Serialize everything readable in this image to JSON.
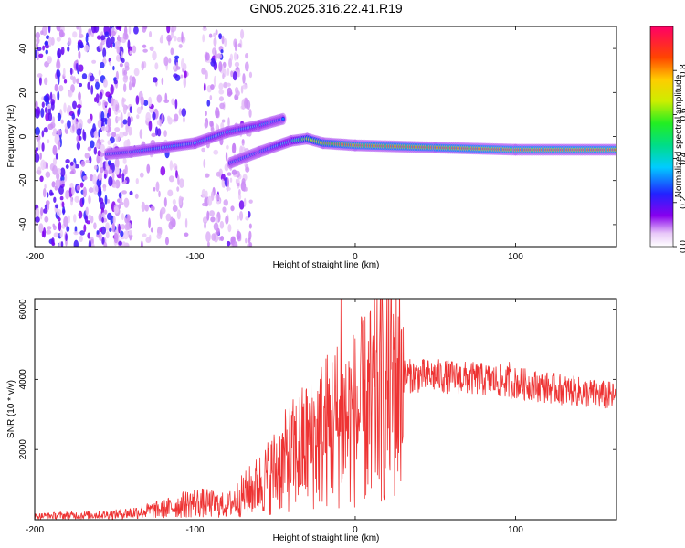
{
  "title": "GN05.2025.316.22.41.R19",
  "colors": {
    "snr_line": "#ee3333",
    "frame": "#000000"
  },
  "chart_data": [
    {
      "type": "heatmap",
      "name": "spectrogram",
      "xlabel": "Height of straight line (km)",
      "ylabel": "Frequency (Hz)",
      "xlim": [
        -200,
        163
      ],
      "ylim": [
        -50,
        50
      ],
      "x_ticks": [
        "-200",
        "-100",
        "0",
        "100"
      ],
      "y_ticks": [
        "40",
        "20",
        "0",
        "-20",
        "-40"
      ],
      "colorbar": {
        "label": "Normalized spectral amplitude",
        "range": [
          0,
          1
        ],
        "ticks": [
          "0.0",
          "0.2",
          "0.4",
          "0.6",
          "0.8"
        ]
      },
      "signal_track": [
        {
          "x": -155,
          "y": -8,
          "amp": 0.3
        },
        {
          "x": -140,
          "y": -7,
          "amp": 0.3
        },
        {
          "x": -120,
          "y": -5,
          "amp": 0.35
        },
        {
          "x": -100,
          "y": -3,
          "amp": 0.35
        },
        {
          "x": -80,
          "y": 2,
          "amp": 0.35
        },
        {
          "x": -60,
          "y": 5,
          "amp": 0.35
        },
        {
          "x": -45,
          "y": 8,
          "amp": 0.3
        },
        {
          "x": -78,
          "y": -12,
          "amp": 0.3
        },
        {
          "x": -60,
          "y": -7,
          "amp": 0.3
        },
        {
          "x": -40,
          "y": -2,
          "amp": 0.4
        },
        {
          "x": -30,
          "y": -1,
          "amp": 0.7
        },
        {
          "x": -20,
          "y": -3,
          "amp": 0.8
        },
        {
          "x": 0,
          "y": -4,
          "amp": 0.9
        },
        {
          "x": 50,
          "y": -5,
          "amp": 0.9
        },
        {
          "x": 100,
          "y": -6,
          "amp": 0.95
        },
        {
          "x": 163,
          "y": -6,
          "amp": 0.95
        }
      ]
    },
    {
      "type": "line",
      "name": "snr",
      "xlabel": "Height of straight line (km)",
      "ylabel": "SNR (10 * v/v)",
      "xlim": [
        -200,
        163
      ],
      "ylim": [
        0,
        6300
      ],
      "x_ticks": [
        "-200",
        "-100",
        "0",
        "100"
      ],
      "y_ticks": [
        "6000",
        "4000",
        "2000"
      ],
      "envelope": {
        "x": [
          -200,
          -150,
          -120,
          -100,
          -80,
          -60,
          -40,
          -20,
          -10,
          0,
          10,
          20,
          30,
          50,
          80,
          100,
          130,
          163
        ],
        "y": [
          100,
          150,
          300,
          500,
          400,
          1000,
          1800,
          2500,
          2800,
          2900,
          3300,
          3800,
          4100,
          4100,
          4000,
          3900,
          3700,
          3500
        ]
      },
      "spikes": [
        {
          "x": -9,
          "y": 6300
        },
        {
          "x": 10,
          "y": 900
        },
        {
          "x": 96,
          "y": 4500
        }
      ]
    }
  ]
}
